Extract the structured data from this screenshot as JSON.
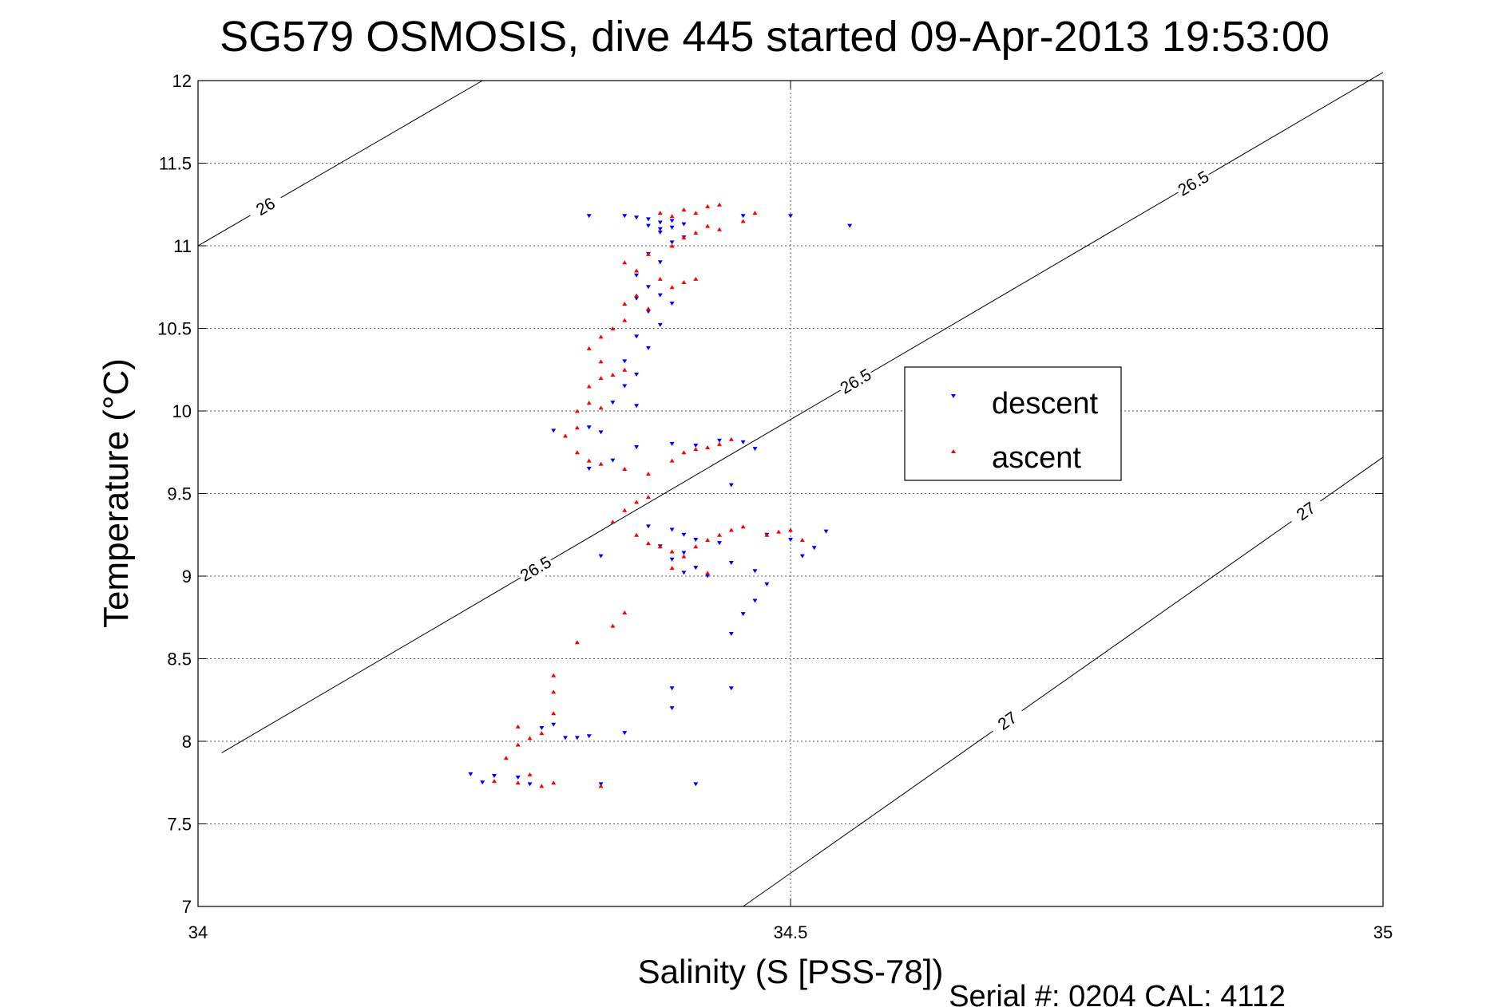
{
  "chart_data": {
    "type": "scatter",
    "title": "SG579 OSMOSIS, dive 445 started 09-Apr-2013 19:53:00",
    "xlabel": "Salinity (S [PSS-78])",
    "ylabel": "Temperature (°C)",
    "footer": "Serial #: 0204  CAL: 4112",
    "xlim": [
      34,
      35
    ],
    "ylim": [
      7,
      12
    ],
    "x_ticks": [
      "34",
      "34.5",
      "35"
    ],
    "y_ticks": [
      "7",
      "7.5",
      "8",
      "8.5",
      "9",
      "9.5",
      "10",
      "10.5",
      "11",
      "11.5",
      "12"
    ],
    "grid": true,
    "legend_position": "center-right",
    "legend": [
      {
        "name": "descent",
        "color": "#0000ff",
        "marker": "triangle-down"
      },
      {
        "name": "ascent",
        "color": "#ff0000",
        "marker": "triangle-up"
      }
    ],
    "contour_labels": [
      "26",
      "26.5",
      "26.5",
      "26.5",
      "27",
      "27"
    ],
    "contours": [
      {
        "label": "26",
        "points": [
          [
            34.0,
            11.0
          ],
          [
            34.24,
            12.0
          ]
        ]
      },
      {
        "label": "26.5",
        "points": [
          [
            34.02,
            7.93
          ],
          [
            35.0,
            12.05
          ]
        ]
      },
      {
        "label": "27",
        "points": [
          [
            34.46,
            7.0
          ],
          [
            35.0,
            9.72
          ]
        ]
      }
    ],
    "series": [
      {
        "name": "descent",
        "color": "#0000ff",
        "points": [
          [
            34.36,
            11.18
          ],
          [
            34.38,
            11.16
          ],
          [
            34.39,
            11.14
          ],
          [
            34.38,
            11.12
          ],
          [
            34.4,
            11.15
          ],
          [
            34.39,
            11.1
          ],
          [
            34.41,
            11.13
          ],
          [
            34.37,
            11.17
          ],
          [
            34.4,
            11.11
          ],
          [
            34.39,
            11.08
          ],
          [
            34.41,
            11.05
          ],
          [
            34.4,
            11.02
          ],
          [
            34.38,
            10.95
          ],
          [
            34.39,
            10.9
          ],
          [
            34.37,
            10.82
          ],
          [
            34.38,
            10.75
          ],
          [
            34.39,
            10.7
          ],
          [
            34.37,
            10.68
          ],
          [
            34.4,
            10.65
          ],
          [
            34.38,
            10.6
          ],
          [
            34.39,
            10.52
          ],
          [
            34.37,
            10.45
          ],
          [
            34.38,
            10.38
          ],
          [
            34.36,
            10.3
          ],
          [
            34.37,
            10.22
          ],
          [
            34.36,
            10.15
          ],
          [
            34.35,
            10.05
          ],
          [
            34.37,
            10.03
          ],
          [
            34.33,
            9.9
          ],
          [
            34.34,
            9.87
          ],
          [
            34.35,
            9.7
          ],
          [
            34.33,
            9.65
          ],
          [
            34.37,
            9.78
          ],
          [
            34.4,
            9.8
          ],
          [
            34.42,
            9.79
          ],
          [
            34.44,
            9.82
          ],
          [
            34.46,
            9.81
          ],
          [
            34.47,
            9.77
          ],
          [
            34.45,
            9.55
          ],
          [
            34.38,
            9.3
          ],
          [
            34.4,
            9.28
          ],
          [
            34.41,
            9.25
          ],
          [
            34.42,
            9.22
          ],
          [
            34.39,
            9.18
          ],
          [
            34.41,
            9.14
          ],
          [
            34.4,
            9.1
          ],
          [
            34.42,
            9.05
          ],
          [
            34.41,
            9.02
          ],
          [
            34.43,
            9.0
          ],
          [
            34.45,
            9.08
          ],
          [
            34.47,
            9.03
          ],
          [
            34.48,
            8.95
          ],
          [
            34.47,
            8.85
          ],
          [
            34.46,
            8.77
          ],
          [
            34.45,
            8.65
          ],
          [
            34.44,
            9.2
          ],
          [
            34.48,
            9.25
          ],
          [
            34.5,
            9.22
          ],
          [
            34.52,
            9.17
          ],
          [
            34.53,
            9.27
          ],
          [
            34.51,
            9.12
          ],
          [
            34.34,
            9.12
          ],
          [
            34.29,
            8.08
          ],
          [
            34.3,
            8.1
          ],
          [
            34.31,
            8.02
          ],
          [
            34.32,
            8.02
          ],
          [
            34.33,
            8.03
          ],
          [
            34.36,
            8.05
          ],
          [
            34.27,
            7.78
          ],
          [
            34.28,
            7.74
          ],
          [
            34.25,
            7.79
          ],
          [
            34.24,
            7.75
          ],
          [
            34.23,
            7.8
          ],
          [
            34.34,
            7.74
          ],
          [
            34.42,
            7.74
          ],
          [
            34.4,
            8.32
          ],
          [
            34.4,
            8.2
          ],
          [
            34.45,
            8.32
          ],
          [
            34.3,
            9.88
          ],
          [
            34.33,
            11.18
          ],
          [
            34.46,
            11.18
          ],
          [
            34.5,
            11.18
          ],
          [
            34.55,
            11.12
          ]
        ]
      },
      {
        "name": "ascent",
        "color": "#ff0000",
        "points": [
          [
            34.39,
            11.2
          ],
          [
            34.41,
            11.22
          ],
          [
            34.43,
            11.24
          ],
          [
            34.44,
            11.25
          ],
          [
            34.42,
            11.2
          ],
          [
            34.4,
            11.18
          ],
          [
            34.43,
            11.12
          ],
          [
            34.42,
            11.08
          ],
          [
            34.44,
            11.1
          ],
          [
            34.41,
            11.05
          ],
          [
            34.4,
            11.0
          ],
          [
            34.38,
            10.95
          ],
          [
            34.36,
            10.9
          ],
          [
            34.37,
            10.85
          ],
          [
            34.39,
            10.8
          ],
          [
            34.41,
            10.78
          ],
          [
            34.42,
            10.8
          ],
          [
            34.4,
            10.75
          ],
          [
            34.37,
            10.7
          ],
          [
            34.36,
            10.65
          ],
          [
            34.38,
            10.62
          ],
          [
            34.36,
            10.55
          ],
          [
            34.35,
            10.5
          ],
          [
            34.34,
            10.45
          ],
          [
            34.33,
            10.38
          ],
          [
            34.34,
            10.3
          ],
          [
            34.36,
            10.25
          ],
          [
            34.35,
            10.22
          ],
          [
            34.34,
            10.2
          ],
          [
            34.33,
            10.15
          ],
          [
            34.33,
            10.05
          ],
          [
            34.32,
            10.0
          ],
          [
            34.34,
            10.02
          ],
          [
            34.32,
            9.9
          ],
          [
            34.31,
            9.85
          ],
          [
            34.32,
            9.75
          ],
          [
            34.33,
            9.7
          ],
          [
            34.34,
            9.68
          ],
          [
            34.36,
            9.65
          ],
          [
            34.38,
            9.62
          ],
          [
            34.4,
            9.7
          ],
          [
            34.41,
            9.75
          ],
          [
            34.43,
            9.78
          ],
          [
            34.44,
            9.8
          ],
          [
            34.45,
            9.83
          ],
          [
            34.42,
            9.77
          ],
          [
            34.36,
            9.4
          ],
          [
            34.37,
            9.45
          ],
          [
            34.38,
            9.48
          ],
          [
            34.35,
            9.33
          ],
          [
            34.37,
            9.25
          ],
          [
            34.38,
            9.2
          ],
          [
            34.39,
            9.18
          ],
          [
            34.4,
            9.15
          ],
          [
            34.41,
            9.12
          ],
          [
            34.42,
            9.18
          ],
          [
            34.43,
            9.22
          ],
          [
            34.44,
            9.25
          ],
          [
            34.45,
            9.28
          ],
          [
            34.46,
            9.3
          ],
          [
            34.48,
            9.25
          ],
          [
            34.49,
            9.27
          ],
          [
            34.5,
            9.28
          ],
          [
            34.51,
            9.22
          ],
          [
            34.4,
            9.05
          ],
          [
            34.43,
            9.02
          ],
          [
            34.35,
            8.7
          ],
          [
            34.36,
            8.78
          ],
          [
            34.32,
            8.6
          ],
          [
            34.3,
            8.4
          ],
          [
            34.3,
            8.3
          ],
          [
            34.3,
            8.17
          ],
          [
            34.29,
            8.05
          ],
          [
            34.28,
            8.02
          ],
          [
            34.27,
            8.09
          ],
          [
            34.27,
            7.98
          ],
          [
            34.26,
            7.9
          ],
          [
            34.28,
            7.8
          ],
          [
            34.27,
            7.75
          ],
          [
            34.29,
            7.73
          ],
          [
            34.3,
            7.75
          ],
          [
            34.34,
            7.73
          ],
          [
            34.25,
            7.76
          ],
          [
            34.47,
            11.2
          ],
          [
            34.46,
            11.15
          ]
        ]
      }
    ]
  }
}
